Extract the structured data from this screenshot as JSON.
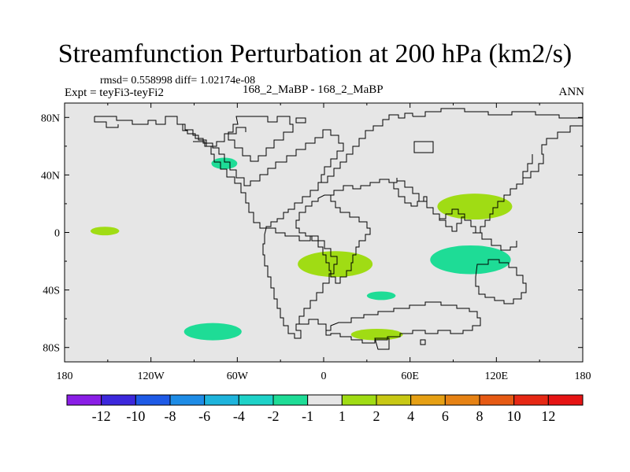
{
  "title": "Streamfunction Perturbation at 200 hPa (km2/s)",
  "stats": "rmsd= 0.558998 diff= 1.02174e-08",
  "experiment": "Expt = teyFi3-teyFi2",
  "case_label": "168_2_MaBP - 168_2_MaBP",
  "season": "ANN",
  "axes": {
    "x_ticks": [
      {
        "lon": -180,
        "label": "180"
      },
      {
        "lon": -120,
        "label": "120W"
      },
      {
        "lon": -60,
        "label": "60W"
      },
      {
        "lon": 0,
        "label": "0"
      },
      {
        "lon": 60,
        "label": "60E"
      },
      {
        "lon": 120,
        "label": "120E"
      },
      {
        "lon": 180,
        "label": "180"
      }
    ],
    "y_ticks": [
      {
        "lat": 80,
        "label": "80N"
      },
      {
        "lat": 40,
        "label": "40N"
      },
      {
        "lat": 0,
        "label": "0"
      },
      {
        "lat": -40,
        "label": "40S"
      },
      {
        "lat": -80,
        "label": "80S"
      }
    ]
  },
  "colorbar": {
    "labels": [
      "-12",
      "-10",
      "-8",
      "-6",
      "-4",
      "-2",
      "-1",
      "1",
      "2",
      "4",
      "6",
      "8",
      "10",
      "12"
    ],
    "colors": [
      "#8a1ee6",
      "#3c28dc",
      "#1e5ae6",
      "#1e8ce6",
      "#1eb4dc",
      "#1ed2c8",
      "#1edc96",
      "#e6e6e6",
      "#a0dc14",
      "#c8c814",
      "#e6a014",
      "#e68214",
      "#e65a14",
      "#e62814",
      "#e61414"
    ]
  },
  "chart_data": {
    "type": "map-contour",
    "projection": "cylindrical-equidistant",
    "lon_range": [
      -180,
      180
    ],
    "lat_range": [
      -90,
      90
    ],
    "variable": "Streamfunction Perturbation at 200 hPa",
    "units": "km2/s",
    "anomalies": [
      {
        "name": "subtropical-north-america",
        "category": "-2 to -1",
        "color": "#1edc96",
        "center_lon": -69,
        "center_lat": 48,
        "rx": 9,
        "ry": 4
      },
      {
        "name": "central-pacific",
        "category": "1 to 2",
        "color": "#a0dc14",
        "center_lon": -152,
        "center_lat": 1,
        "rx": 10,
        "ry": 3
      },
      {
        "name": "south-atlantic",
        "category": "1 to 2",
        "color": "#a0dc14",
        "center_lon": 8,
        "center_lat": -22,
        "rx": 26,
        "ry": 9
      },
      {
        "name": "southeast-asia",
        "category": "1 to 2",
        "color": "#a0dc14",
        "center_lon": 105,
        "center_lat": 18,
        "rx": 26,
        "ry": 9
      },
      {
        "name": "indian-ocean",
        "category": "-2 to -1",
        "color": "#1edc96",
        "center_lon": 102,
        "center_lat": -19,
        "rx": 28,
        "ry": 10
      },
      {
        "name": "southern-ocean-west",
        "category": "-2 to -1",
        "color": "#1edc96",
        "center_lon": -77,
        "center_lat": -69,
        "rx": 20,
        "ry": 6
      },
      {
        "name": "southern-indian",
        "category": "-2 to -1",
        "color": "#1edc96",
        "center_lon": 40,
        "center_lat": -44,
        "rx": 10,
        "ry": 3
      },
      {
        "name": "antarctic-coast",
        "category": "1 to 2",
        "color": "#a0dc14",
        "center_lon": 37,
        "center_lat": -71,
        "rx": 18,
        "ry": 4
      }
    ]
  }
}
